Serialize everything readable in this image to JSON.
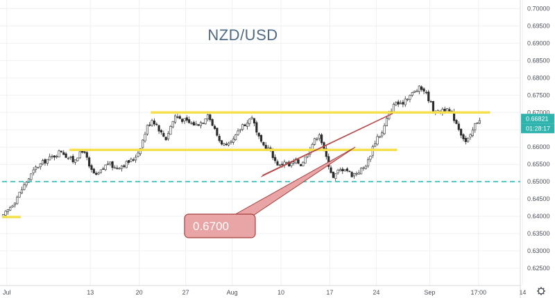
{
  "chart_data": {
    "type": "candlestick",
    "title": "NZD/USD",
    "ylim": [
      0.62,
      0.7025
    ],
    "y_ticks": [
      "0.62500",
      "0.63000",
      "0.63500",
      "0.64000",
      "0.64500",
      "0.65000",
      "0.65500",
      "0.66000",
      "0.66500",
      "0.67000",
      "0.67500",
      "0.68000",
      "0.68500",
      "0.69000",
      "0.69500",
      "0.70000"
    ],
    "x_ticks": [
      "Jul",
      "13",
      "20",
      "27",
      "Aug",
      "10",
      "17",
      "24",
      "Sep",
      "17:00",
      "14"
    ],
    "last_price": "0.66821",
    "countdown": "01:28:17",
    "close_path": [
      [
        0,
        0.64
      ],
      [
        5,
        0.6445
      ],
      [
        10,
        0.65
      ],
      [
        14,
        0.654
      ],
      [
        18,
        0.656
      ],
      [
        22,
        0.6575
      ],
      [
        25,
        0.659
      ],
      [
        27,
        0.6575
      ],
      [
        30,
        0.656
      ],
      [
        32,
        0.6575
      ],
      [
        35,
        0.659
      ],
      [
        37,
        0.654
      ],
      [
        40,
        0.6515
      ],
      [
        42,
        0.653
      ],
      [
        45,
        0.6555
      ],
      [
        48,
        0.654
      ],
      [
        52,
        0.655
      ],
      [
        56,
        0.6565
      ],
      [
        58,
        0.6585
      ],
      [
        60,
        0.662
      ],
      [
        62,
        0.666
      ],
      [
        64,
        0.668
      ],
      [
        66,
        0.6665
      ],
      [
        68,
        0.664
      ],
      [
        70,
        0.6625
      ],
      [
        72,
        0.666
      ],
      [
        74,
        0.669
      ],
      [
        77,
        0.668
      ],
      [
        80,
        0.667
      ],
      [
        83,
        0.6665
      ],
      [
        86,
        0.6675
      ],
      [
        88,
        0.67
      ],
      [
        89,
        0.668
      ],
      [
        91,
        0.665
      ],
      [
        93,
        0.662
      ],
      [
        96,
        0.66
      ],
      [
        98,
        0.661
      ],
      [
        100,
        0.663
      ],
      [
        103,
        0.6665
      ],
      [
        105,
        0.667
      ],
      [
        107,
        0.669
      ],
      [
        109,
        0.664
      ],
      [
        111,
        0.661
      ],
      [
        113,
        0.66
      ],
      [
        115,
        0.659
      ],
      [
        117,
        0.656
      ],
      [
        119,
        0.6545
      ],
      [
        121,
        0.656
      ],
      [
        123,
        0.6545
      ],
      [
        126,
        0.656
      ],
      [
        128,
        0.655
      ],
      [
        130,
        0.657
      ],
      [
        132,
        0.66
      ],
      [
        134,
        0.662
      ],
      [
        136,
        0.664
      ],
      [
        138,
        0.659
      ],
      [
        140,
        0.655
      ],
      [
        142,
        0.651
      ],
      [
        144,
        0.653
      ],
      [
        147,
        0.654
      ],
      [
        150,
        0.652
      ],
      [
        153,
        0.653
      ],
      [
        155,
        0.654
      ],
      [
        157,
        0.656
      ],
      [
        159,
        0.66
      ],
      [
        161,
        0.663
      ],
      [
        163,
        0.664
      ],
      [
        165,
        0.668
      ],
      [
        167,
        0.671
      ],
      [
        169,
        0.673
      ],
      [
        171,
        0.672
      ],
      [
        173,
        0.674
      ],
      [
        175,
        0.675
      ],
      [
        177,
        0.676
      ],
      [
        179,
        0.677
      ],
      [
        181,
        0.6765
      ],
      [
        183,
        0.674
      ],
      [
        185,
        0.671
      ],
      [
        187,
        0.67
      ],
      [
        189,
        0.671
      ],
      [
        191,
        0.6705
      ],
      [
        193,
        0.6695
      ],
      [
        195,
        0.667
      ],
      [
        197,
        0.664
      ],
      [
        199,
        0.6615
      ],
      [
        201,
        0.663
      ],
      [
        203,
        0.6665
      ],
      [
        205,
        0.6682
      ]
    ],
    "horizontal_levels": [
      {
        "value": 0.67,
        "from_bar": 64,
        "to_bar": 210,
        "color": "#f5e04c",
        "style": "solid"
      },
      {
        "value": 0.6592,
        "from_bar": 29,
        "to_bar": 170,
        "color": "#f5e04c",
        "style": "solid"
      },
      {
        "value": 0.6398,
        "from_bar": 0,
        "to_bar": 8,
        "color": "#f5e04c",
        "style": "solid"
      },
      {
        "value": 0.65,
        "from_bar": 0,
        "to_bar": 230,
        "color": "#4fc7c1",
        "style": "dashed"
      }
    ],
    "trendline": {
      "from": [
        112,
        0.6518
      ],
      "to": [
        168,
        0.6697
      ],
      "color": "#b54a4a"
    },
    "callout": {
      "label": "0.6700",
      "box_color": "#e9a5a5",
      "border_color": "#a63e3e"
    },
    "colors": {
      "up": "#26a69a",
      "down": "#ef5350",
      "candle": "#2b2b2b",
      "badge_price": "#2fb3ad",
      "badge_timer": "#2fb3ad"
    }
  }
}
